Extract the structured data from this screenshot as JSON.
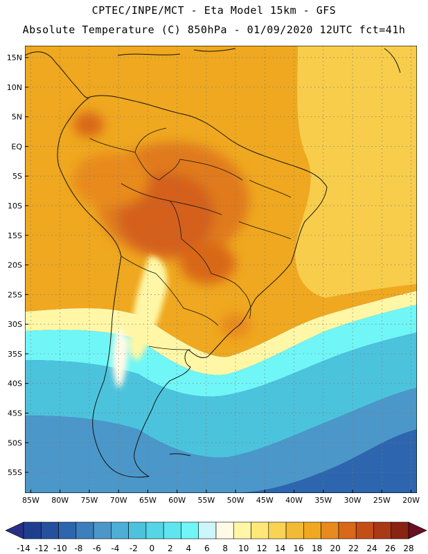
{
  "header": {
    "line1": "CPTEC/INPE/MCT -  Eta Model 15km - GFS",
    "line2": "Absolute Temperature (C) 850hPa - 01/09/2020 12UTC fct=41h"
  },
  "map": {
    "lon_range": [
      -86,
      -19
    ],
    "lat_range": [
      -58.5,
      17
    ],
    "lat_ticks": [
      {
        "value": 15,
        "label": "15N"
      },
      {
        "value": 10,
        "label": "10N"
      },
      {
        "value": 5,
        "label": "5N"
      },
      {
        "value": 0,
        "label": "EQ"
      },
      {
        "value": -5,
        "label": "5S"
      },
      {
        "value": -10,
        "label": "10S"
      },
      {
        "value": -15,
        "label": "15S"
      },
      {
        "value": -20,
        "label": "20S"
      },
      {
        "value": -25,
        "label": "25S"
      },
      {
        "value": -30,
        "label": "30S"
      },
      {
        "value": -35,
        "label": "35S"
      },
      {
        "value": -40,
        "label": "40S"
      },
      {
        "value": -45,
        "label": "45S"
      },
      {
        "value": -50,
        "label": "50S"
      },
      {
        "value": -55,
        "label": "55S"
      }
    ],
    "lon_ticks": [
      {
        "value": -85,
        "label": "85W"
      },
      {
        "value": -80,
        "label": "80W"
      },
      {
        "value": -75,
        "label": "75W"
      },
      {
        "value": -70,
        "label": "70W"
      },
      {
        "value": -65,
        "label": "65W"
      },
      {
        "value": -60,
        "label": "60W"
      },
      {
        "value": -55,
        "label": "55W"
      },
      {
        "value": -50,
        "label": "50W"
      },
      {
        "value": -45,
        "label": "45W"
      },
      {
        "value": -40,
        "label": "40W"
      },
      {
        "value": -35,
        "label": "35W"
      },
      {
        "value": -30,
        "label": "30W"
      },
      {
        "value": -25,
        "label": "25W"
      },
      {
        "value": -20,
        "label": "20W"
      }
    ]
  },
  "colorbar": {
    "labels": [
      "-14",
      "-12",
      "-10",
      "-8",
      "-6",
      "-4",
      "-2",
      "0",
      "2",
      "4",
      "6",
      "8",
      "10",
      "12",
      "14",
      "16",
      "18",
      "20",
      "22",
      "24",
      "26",
      "28"
    ],
    "colors": [
      "#1e3f8f",
      "#25509e",
      "#2d66ae",
      "#3c7fbd",
      "#4c97c9",
      "#4daed6",
      "#4cc3dd",
      "#55d5e6",
      "#5fe5ee",
      "#70f6f6",
      "#cdf6fa",
      "#fffae6",
      "#fff7a6",
      "#ffe878",
      "#f8d354",
      "#f2bb35",
      "#efa81f",
      "#e88a1d",
      "#d96818",
      "#c44f16",
      "#aa3916",
      "#882411"
    ],
    "low_color": "#2a2f86",
    "high_color": "#6a0f22"
  },
  "legend": {
    "colors": {
      "tropical_hot": "#e07a1f",
      "hot_core": "#d4611a",
      "warm": "#efa81f",
      "mild": "#f8d354",
      "cool": "#fff7a6",
      "cold_front": "#70f6f6",
      "cold": "#4cc3dd",
      "colder": "#4c97c9",
      "coldest": "#2d66ae"
    }
  }
}
